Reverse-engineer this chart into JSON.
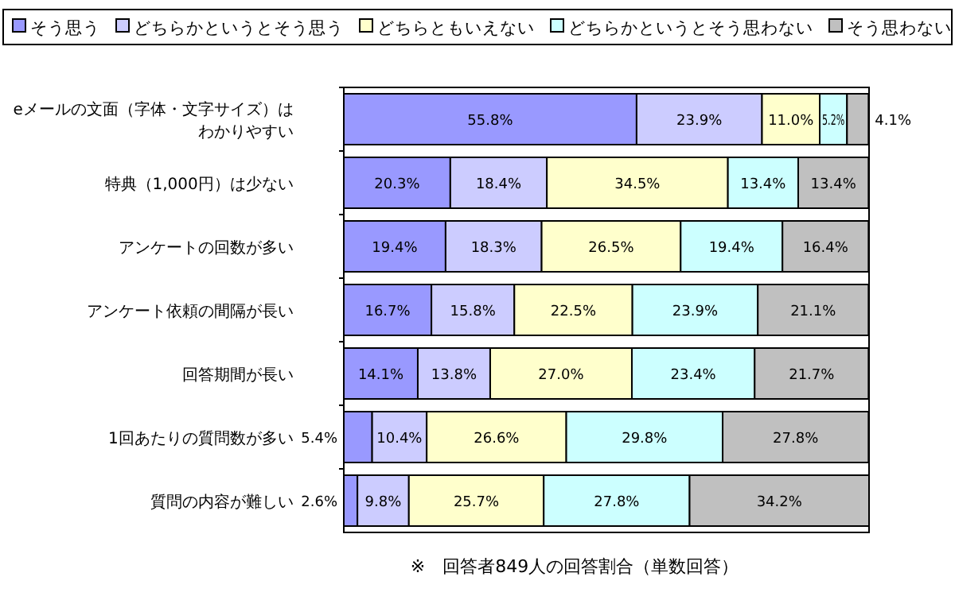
{
  "chart_data": {
    "type": "bar",
    "orientation": "horizontal",
    "stacked": true,
    "legend": "top",
    "categories": [
      "eメールの文面（字体・文字サイズ）はわかりやすい",
      "特典（1,000円）は少ない",
      "アンケートの回数が多い",
      "アンケート依頼の間隔が長い",
      "回答期間が長い",
      "1回あたりの質問数が多い",
      "質問の内容が難しい"
    ],
    "series": [
      {
        "name": "そう思う",
        "color": "#9999ff",
        "values": [
          55.8,
          20.3,
          19.4,
          16.7,
          14.1,
          5.4,
          2.6
        ],
        "value_labels": [
          "55.8%",
          "20.3%",
          "19.4%",
          "16.7%",
          "14.1%",
          "5.4%",
          "2.6%"
        ]
      },
      {
        "name": "どちらかというとそう思う",
        "color": "#ccccff",
        "values": [
          23.9,
          18.4,
          18.3,
          15.8,
          13.8,
          10.4,
          9.8
        ],
        "value_labels": [
          "23.9%",
          "18.4%",
          "18.3%",
          "15.8%",
          "13.8%",
          "10.4%",
          "9.8%"
        ]
      },
      {
        "name": "どちらともいえない",
        "color": "#ffffcc",
        "values": [
          11.0,
          34.5,
          26.5,
          22.5,
          27.0,
          26.6,
          25.7
        ],
        "value_labels": [
          "11.0%",
          "34.5%",
          "26.5%",
          "22.5%",
          "27.0%",
          "26.6%",
          "25.7%"
        ]
      },
      {
        "name": "どちらかというとそう思わない",
        "color": "#ccffff",
        "values": [
          5.2,
          13.4,
          19.4,
          23.9,
          23.4,
          29.8,
          27.8
        ],
        "value_labels": [
          "5.2%",
          "13.4%",
          "19.4%",
          "23.9%",
          "23.4%",
          "29.8%",
          "27.8%"
        ]
      },
      {
        "name": "そう思わない",
        "color": "#c0c0c0",
        "values": [
          4.1,
          13.4,
          16.4,
          21.1,
          21.7,
          27.8,
          34.2
        ],
        "value_labels": [
          "4.1%",
          "13.4%",
          "16.4%",
          "21.1%",
          "21.7%",
          "27.8%",
          "34.2%"
        ]
      }
    ],
    "annotations": [
      "※　回答者849人の回答割合（単数回答）"
    ]
  }
}
